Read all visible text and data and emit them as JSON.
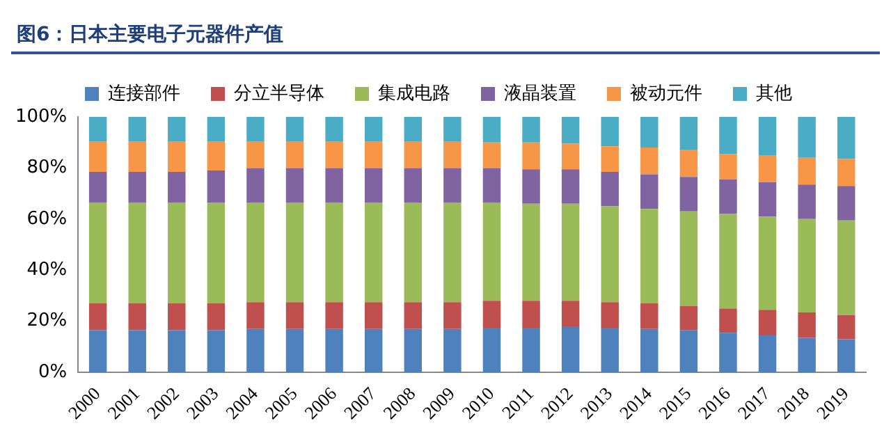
{
  "chart_data": {
    "type": "bar",
    "title": "图6：日本主要电子元器件产值",
    "stacked": true,
    "legend": "top",
    "categories": [
      "2000",
      "2001",
      "2002",
      "2003",
      "2004",
      "2005",
      "2006",
      "2007",
      "2008",
      "2009",
      "2010",
      "2011",
      "2012",
      "2013",
      "2014",
      "2015",
      "2016",
      "2017",
      "2018",
      "2019"
    ],
    "ylim": [
      0,
      100
    ],
    "yticks": [
      {
        "value": 0,
        "label": "0%"
      },
      {
        "value": 20,
        "label": "20%"
      },
      {
        "value": 40,
        "label": "40%"
      },
      {
        "value": 60,
        "label": "60%"
      },
      {
        "value": 80,
        "label": "80%"
      },
      {
        "value": 100,
        "label": "100%"
      }
    ],
    "grid": false,
    "series": [
      {
        "name": "连接部件",
        "color": "#4f81bd",
        "values": [
          16.5,
          16.5,
          16.5,
          16.5,
          17,
          17,
          17,
          17,
          17,
          17,
          17.5,
          17.5,
          18,
          17.5,
          17,
          16.5,
          15.5,
          14.5,
          13.5,
          13
        ]
      },
      {
        "name": "分立半导体",
        "color": "#c0504d",
        "values": [
          10.5,
          10.5,
          10.5,
          10.5,
          10.5,
          10.5,
          10.5,
          10.5,
          10.5,
          10.5,
          10.5,
          10.5,
          10,
          10,
          10,
          9.5,
          9.5,
          10,
          10,
          9.5
        ]
      },
      {
        "name": "集成电路",
        "color": "#9bbb59",
        "values": [
          39.5,
          39.5,
          39.5,
          39.5,
          39,
          39,
          39,
          39,
          39,
          39,
          38.5,
          38,
          38,
          37.5,
          37,
          37,
          37,
          36.5,
          36.5,
          37
        ]
      },
      {
        "name": "液晶装置",
        "color": "#8064a2",
        "values": [
          12,
          12,
          12,
          12.5,
          13.5,
          13.5,
          13.5,
          13.5,
          13.5,
          13.5,
          13.5,
          13.5,
          13.5,
          13.5,
          13.5,
          13.5,
          13.5,
          13.5,
          13.5,
          13.5
        ]
      },
      {
        "name": "被动元件",
        "color": "#f79646",
        "values": [
          12,
          12,
          12,
          11.5,
          10.5,
          10.5,
          10.5,
          10.5,
          10.5,
          10.5,
          10,
          10.5,
          10,
          10,
          10.5,
          10.5,
          10,
          10.5,
          10.5,
          10.5
        ]
      },
      {
        "name": "其他",
        "color": "#4bacc6",
        "values": [
          9.5,
          9.5,
          9.5,
          9.5,
          9.5,
          9.5,
          9.5,
          9.5,
          9.5,
          9.5,
          10,
          10,
          10.5,
          11.5,
          12,
          13,
          14.5,
          15,
          16,
          16.5
        ]
      }
    ]
  }
}
